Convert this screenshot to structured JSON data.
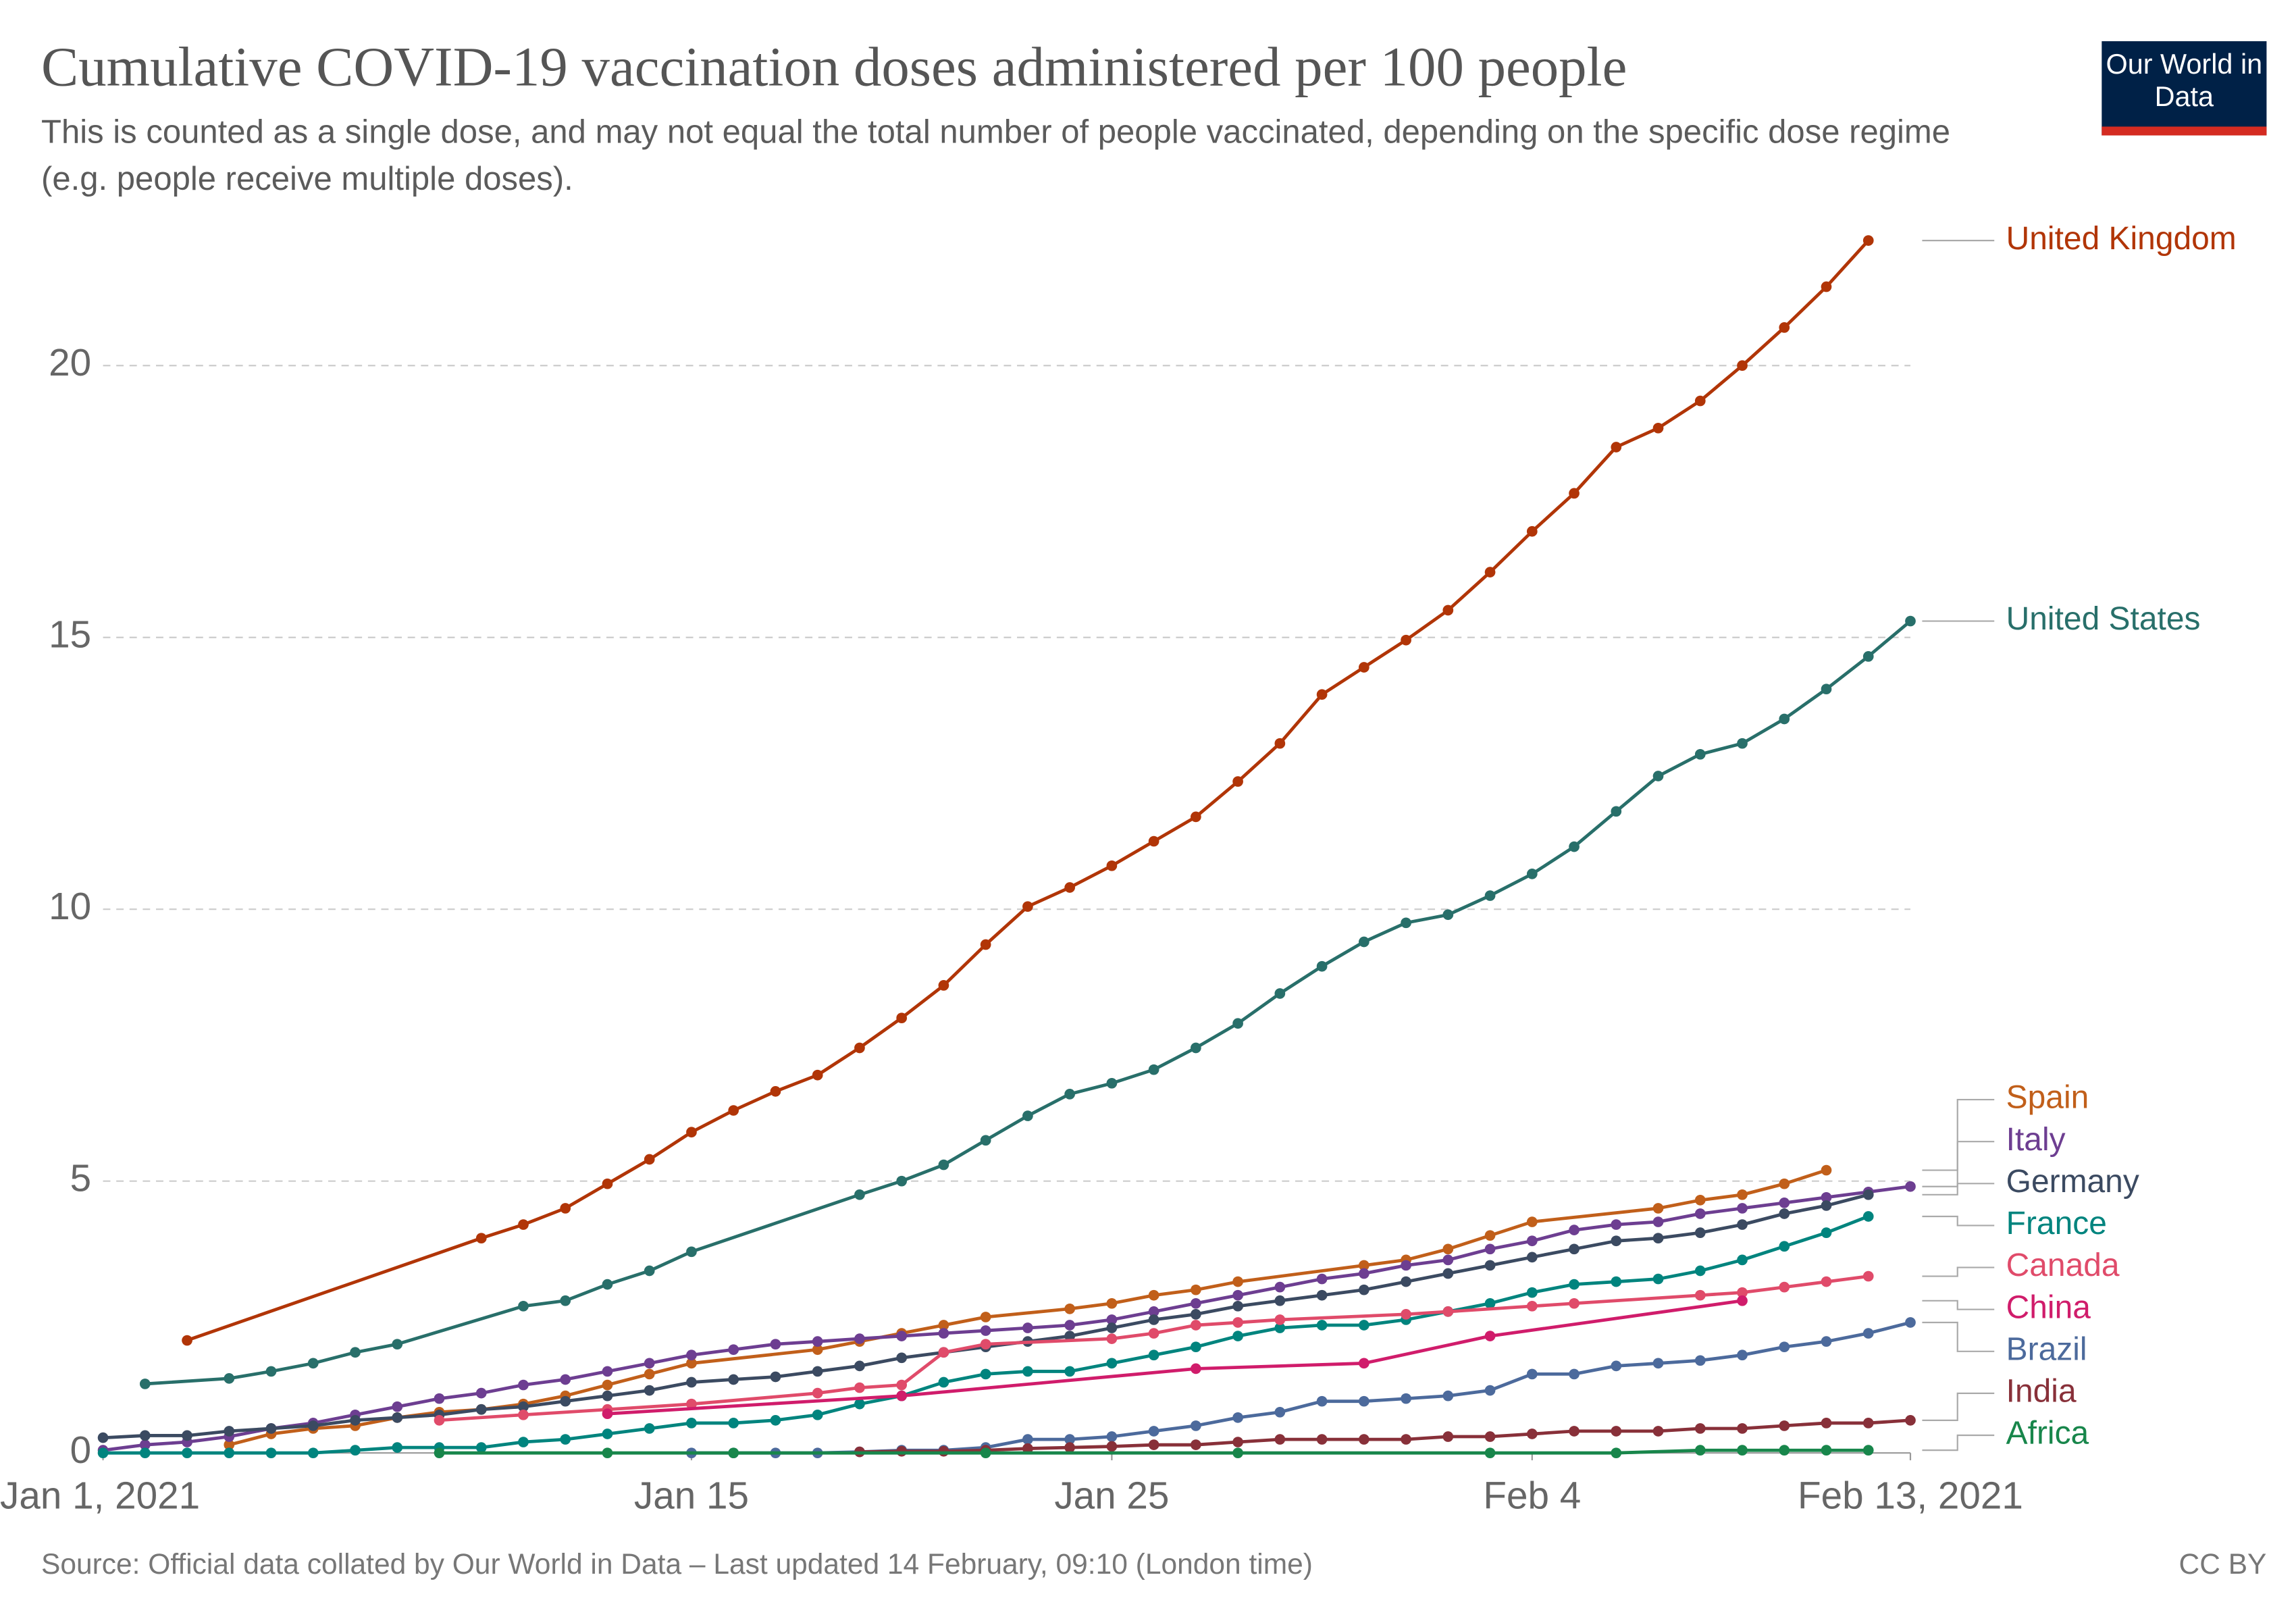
{
  "chart_data": {
    "type": "line",
    "title": "Cumulative COVID-19 vaccination doses administered per 100 people",
    "subtitle": "This is counted as a single dose, and may not equal the total number of people vaccinated, depending on the specific dose regime (e.g. people receive multiple doses).",
    "logo": "Our World in Data",
    "source": "Source: Official data collated by Our World in Data – Last updated 14 February, 09:10 (London time)",
    "license": "CC BY",
    "xlim": [
      "2021-01-01",
      "2021-02-13"
    ],
    "xticks": [
      {
        "value": "2021-01-01",
        "label": "Jan 1, 2021"
      },
      {
        "value": "2021-01-15",
        "label": "Jan 15"
      },
      {
        "value": "2021-01-25",
        "label": "Jan 25"
      },
      {
        "value": "2021-02-04",
        "label": "Feb 4"
      },
      {
        "value": "2021-02-13",
        "label": "Feb 13, 2021"
      }
    ],
    "ylim": [
      0,
      22.5
    ],
    "yticks": [
      0,
      5,
      10,
      15,
      20
    ],
    "grid": true,
    "series": [
      {
        "name": "United Kingdom",
        "color": "#b13507",
        "x": [
          "2021-01-03",
          "2021-01-10",
          "2021-01-11",
          "2021-01-12",
          "2021-01-13",
          "2021-01-14",
          "2021-01-15",
          "2021-01-16",
          "2021-01-17",
          "2021-01-18",
          "2021-01-19",
          "2021-01-20",
          "2021-01-21",
          "2021-01-22",
          "2021-01-23",
          "2021-01-24",
          "2021-01-25",
          "2021-01-26",
          "2021-01-27",
          "2021-01-28",
          "2021-01-29",
          "2021-01-30",
          "2021-01-31",
          "2021-02-01",
          "2021-02-02",
          "2021-02-03",
          "2021-02-04",
          "2021-02-05",
          "2021-02-06",
          "2021-02-07",
          "2021-02-08",
          "2021-02-09",
          "2021-02-10",
          "2021-02-11",
          "2021-02-12"
        ],
        "values": [
          2.07,
          3.95,
          4.2,
          4.5,
          4.95,
          5.4,
          5.9,
          6.3,
          6.65,
          6.95,
          7.45,
          8.0,
          8.6,
          9.35,
          10.05,
          10.4,
          10.8,
          11.25,
          11.7,
          12.35,
          13.05,
          13.95,
          14.45,
          14.95,
          15.5,
          16.2,
          16.95,
          17.65,
          18.5,
          18.85,
          19.35,
          20.0,
          20.7,
          21.45,
          22.3
        ]
      },
      {
        "name": "United States",
        "color": "#286f6a",
        "x": [
          "2021-01-02",
          "2021-01-04",
          "2021-01-05",
          "2021-01-06",
          "2021-01-07",
          "2021-01-08",
          "2021-01-11",
          "2021-01-12",
          "2021-01-13",
          "2021-01-14",
          "2021-01-15",
          "2021-01-19",
          "2021-01-20",
          "2021-01-21",
          "2021-01-22",
          "2021-01-23",
          "2021-01-24",
          "2021-01-25",
          "2021-01-26",
          "2021-01-27",
          "2021-01-28",
          "2021-01-29",
          "2021-01-30",
          "2021-01-31",
          "2021-02-01",
          "2021-02-02",
          "2021-02-03",
          "2021-02-04",
          "2021-02-05",
          "2021-02-06",
          "2021-02-07",
          "2021-02-08",
          "2021-02-09",
          "2021-02-10",
          "2021-02-11",
          "2021-02-12",
          "2021-02-13"
        ],
        "values": [
          1.27,
          1.37,
          1.5,
          1.65,
          1.85,
          2.0,
          2.7,
          2.8,
          3.1,
          3.35,
          3.7,
          4.75,
          5.0,
          5.3,
          5.75,
          6.2,
          6.6,
          6.8,
          7.05,
          7.45,
          7.9,
          8.45,
          8.95,
          9.4,
          9.75,
          9.9,
          10.25,
          10.65,
          11.15,
          11.8,
          12.45,
          12.85,
          13.05,
          13.5,
          14.05,
          14.65,
          15.3
        ]
      },
      {
        "name": "Spain",
        "color": "#c15f1a",
        "x": [
          "2021-01-04",
          "2021-01-05",
          "2021-01-06",
          "2021-01-07",
          "2021-01-08",
          "2021-01-09",
          "2021-01-10",
          "2021-01-11",
          "2021-01-12",
          "2021-01-13",
          "2021-01-14",
          "2021-01-15",
          "2021-01-18",
          "2021-01-19",
          "2021-01-20",
          "2021-01-21",
          "2021-01-22",
          "2021-01-24",
          "2021-01-25",
          "2021-01-26",
          "2021-01-27",
          "2021-01-28",
          "2021-01-31",
          "2021-02-01",
          "2021-02-02",
          "2021-02-03",
          "2021-02-04",
          "2021-02-07",
          "2021-02-08",
          "2021-02-09",
          "2021-02-10",
          "2021-02-11"
        ],
        "values": [
          0.15,
          0.35,
          0.45,
          0.5,
          0.65,
          0.75,
          0.8,
          0.9,
          1.05,
          1.25,
          1.45,
          1.65,
          1.9,
          2.05,
          2.2,
          2.35,
          2.5,
          2.65,
          2.75,
          2.9,
          3.0,
          3.15,
          3.45,
          3.55,
          3.75,
          4.0,
          4.25,
          4.5,
          4.65,
          4.75,
          4.95,
          5.2
        ]
      },
      {
        "name": "Italy",
        "color": "#6d3e91",
        "x": [
          "2021-01-01",
          "2021-01-02",
          "2021-01-03",
          "2021-01-04",
          "2021-01-05",
          "2021-01-06",
          "2021-01-07",
          "2021-01-08",
          "2021-01-09",
          "2021-01-10",
          "2021-01-11",
          "2021-01-12",
          "2021-01-13",
          "2021-01-14",
          "2021-01-15",
          "2021-01-16",
          "2021-01-17",
          "2021-01-18",
          "2021-01-19",
          "2021-01-20",
          "2021-01-21",
          "2021-01-22",
          "2021-01-23",
          "2021-01-24",
          "2021-01-25",
          "2021-01-26",
          "2021-01-27",
          "2021-01-28",
          "2021-01-29",
          "2021-01-30",
          "2021-01-31",
          "2021-02-01",
          "2021-02-02",
          "2021-02-03",
          "2021-02-04",
          "2021-02-05",
          "2021-02-06",
          "2021-02-07",
          "2021-02-08",
          "2021-02-09",
          "2021-02-10",
          "2021-02-11",
          "2021-02-12",
          "2021-02-13"
        ],
        "values": [
          0.05,
          0.15,
          0.2,
          0.3,
          0.45,
          0.55,
          0.7,
          0.85,
          1.0,
          1.1,
          1.25,
          1.35,
          1.5,
          1.65,
          1.8,
          1.9,
          2.0,
          2.05,
          2.1,
          2.15,
          2.2,
          2.25,
          2.3,
          2.35,
          2.45,
          2.6,
          2.75,
          2.9,
          3.05,
          3.2,
          3.3,
          3.45,
          3.55,
          3.75,
          3.9,
          4.1,
          4.2,
          4.25,
          4.4,
          4.5,
          4.6,
          4.7,
          4.8,
          4.9
        ]
      },
      {
        "name": "Germany",
        "color": "#3b4a61",
        "x": [
          "2021-01-01",
          "2021-01-02",
          "2021-01-03",
          "2021-01-04",
          "2021-01-05",
          "2021-01-06",
          "2021-01-07",
          "2021-01-08",
          "2021-01-09",
          "2021-01-10",
          "2021-01-11",
          "2021-01-12",
          "2021-01-13",
          "2021-01-14",
          "2021-01-15",
          "2021-01-16",
          "2021-01-17",
          "2021-01-18",
          "2021-01-19",
          "2021-01-20",
          "2021-01-21",
          "2021-01-22",
          "2021-01-23",
          "2021-01-24",
          "2021-01-25",
          "2021-01-26",
          "2021-01-27",
          "2021-01-28",
          "2021-01-29",
          "2021-01-30",
          "2021-01-31",
          "2021-02-01",
          "2021-02-02",
          "2021-02-03",
          "2021-02-04",
          "2021-02-05",
          "2021-02-06",
          "2021-02-07",
          "2021-02-08",
          "2021-02-09",
          "2021-02-10",
          "2021-02-11",
          "2021-02-12"
        ],
        "values": [
          0.28,
          0.32,
          0.32,
          0.4,
          0.45,
          0.5,
          0.6,
          0.65,
          0.7,
          0.8,
          0.85,
          0.95,
          1.05,
          1.15,
          1.3,
          1.35,
          1.4,
          1.5,
          1.6,
          1.75,
          1.85,
          1.95,
          2.05,
          2.15,
          2.3,
          2.45,
          2.55,
          2.7,
          2.8,
          2.9,
          3.0,
          3.15,
          3.3,
          3.45,
          3.6,
          3.75,
          3.9,
          3.95,
          4.05,
          4.2,
          4.4,
          4.55,
          4.75
        ]
      },
      {
        "name": "France",
        "color": "#00847e",
        "x": [
          "2021-01-01",
          "2021-01-02",
          "2021-01-03",
          "2021-01-04",
          "2021-01-05",
          "2021-01-06",
          "2021-01-07",
          "2021-01-08",
          "2021-01-09",
          "2021-01-10",
          "2021-01-11",
          "2021-01-12",
          "2021-01-13",
          "2021-01-14",
          "2021-01-15",
          "2021-01-16",
          "2021-01-17",
          "2021-01-18",
          "2021-01-19",
          "2021-01-20",
          "2021-01-21",
          "2021-01-22",
          "2021-01-23",
          "2021-01-24",
          "2021-01-25",
          "2021-01-26",
          "2021-01-27",
          "2021-01-28",
          "2021-01-29",
          "2021-01-30",
          "2021-01-31",
          "2021-02-01",
          "2021-02-02",
          "2021-02-03",
          "2021-02-04",
          "2021-02-05",
          "2021-02-06",
          "2021-02-07",
          "2021-02-08",
          "2021-02-09",
          "2021-02-10",
          "2021-02-11",
          "2021-02-12"
        ],
        "values": [
          0,
          0,
          0,
          0,
          0,
          0,
          0.05,
          0.1,
          0.1,
          0.1,
          0.2,
          0.25,
          0.35,
          0.45,
          0.55,
          0.55,
          0.6,
          0.7,
          0.9,
          1.05,
          1.3,
          1.45,
          1.5,
          1.5,
          1.65,
          1.8,
          1.95,
          2.15,
          2.3,
          2.35,
          2.35,
          2.45,
          2.6,
          2.75,
          2.95,
          3.1,
          3.15,
          3.2,
          3.35,
          3.55,
          3.8,
          4.05,
          4.35
        ]
      },
      {
        "name": "Canada",
        "color": "#e04b6a",
        "x": [
          "2021-01-09",
          "2021-01-11",
          "2021-01-13",
          "2021-01-15",
          "2021-01-18",
          "2021-01-19",
          "2021-01-20",
          "2021-01-21",
          "2021-01-22",
          "2021-01-25",
          "2021-01-26",
          "2021-01-27",
          "2021-01-28",
          "2021-01-29",
          "2021-02-01",
          "2021-02-02",
          "2021-02-04",
          "2021-02-05",
          "2021-02-08",
          "2021-02-09",
          "2021-02-10",
          "2021-02-11",
          "2021-02-12"
        ],
        "values": [
          0.6,
          0.7,
          0.8,
          0.9,
          1.1,
          1.2,
          1.25,
          1.85,
          2.0,
          2.1,
          2.2,
          2.35,
          2.4,
          2.45,
          2.55,
          2.6,
          2.7,
          2.75,
          2.9,
          2.95,
          3.05,
          3.15,
          3.25
        ]
      },
      {
        "name": "China",
        "color": "#d01c6b",
        "x": [
          "2021-01-13",
          "2021-01-20",
          "2021-01-27",
          "2021-01-31",
          "2021-02-03",
          "2021-02-09"
        ],
        "values": [
          0.72,
          1.05,
          1.55,
          1.65,
          2.15,
          2.8
        ]
      },
      {
        "name": "Brazil",
        "color": "#4c6a9c",
        "x": [
          "2021-01-15",
          "2021-01-16",
          "2021-01-17",
          "2021-01-18",
          "2021-01-19",
          "2021-01-20",
          "2021-01-21",
          "2021-01-22",
          "2021-01-23",
          "2021-01-24",
          "2021-01-25",
          "2021-01-26",
          "2021-01-27",
          "2021-01-28",
          "2021-01-29",
          "2021-01-30",
          "2021-01-31",
          "2021-02-01",
          "2021-02-02",
          "2021-02-03",
          "2021-02-04",
          "2021-02-05",
          "2021-02-06",
          "2021-02-07",
          "2021-02-08",
          "2021-02-09",
          "2021-02-10",
          "2021-02-11",
          "2021-02-12",
          "2021-02-13"
        ],
        "values": [
          0,
          0,
          0,
          0,
          0.02,
          0.05,
          0.05,
          0.1,
          0.25,
          0.25,
          0.3,
          0.4,
          0.5,
          0.65,
          0.75,
          0.95,
          0.95,
          1.0,
          1.05,
          1.15,
          1.45,
          1.45,
          1.6,
          1.65,
          1.7,
          1.8,
          1.95,
          2.05,
          2.2,
          2.4
        ]
      },
      {
        "name": "India",
        "color": "#883039",
        "x": [
          "2021-01-19",
          "2021-01-20",
          "2021-01-21",
          "2021-01-22",
          "2021-01-23",
          "2021-01-24",
          "2021-01-25",
          "2021-01-26",
          "2021-01-27",
          "2021-01-28",
          "2021-01-29",
          "2021-01-30",
          "2021-01-31",
          "2021-02-01",
          "2021-02-02",
          "2021-02-03",
          "2021-02-04",
          "2021-02-05",
          "2021-02-06",
          "2021-02-07",
          "2021-02-08",
          "2021-02-09",
          "2021-02-10",
          "2021-02-11",
          "2021-02-12",
          "2021-02-13"
        ],
        "values": [
          0.02,
          0.03,
          0.03,
          0.05,
          0.08,
          0.1,
          0.12,
          0.15,
          0.15,
          0.2,
          0.25,
          0.25,
          0.25,
          0.25,
          0.3,
          0.3,
          0.35,
          0.4,
          0.4,
          0.4,
          0.45,
          0.45,
          0.5,
          0.55,
          0.55,
          0.6
        ]
      },
      {
        "name": "Africa",
        "color": "#18864b",
        "x": [
          "2021-01-09",
          "2021-01-13",
          "2021-01-16",
          "2021-01-22",
          "2021-01-28",
          "2021-02-03",
          "2021-02-06",
          "2021-02-08",
          "2021-02-09",
          "2021-02-10",
          "2021-02-11",
          "2021-02-12"
        ],
        "values": [
          0,
          0,
          0,
          0,
          0,
          0,
          0,
          0.05,
          0.05,
          0.05,
          0.05,
          0.05
        ]
      }
    ]
  }
}
